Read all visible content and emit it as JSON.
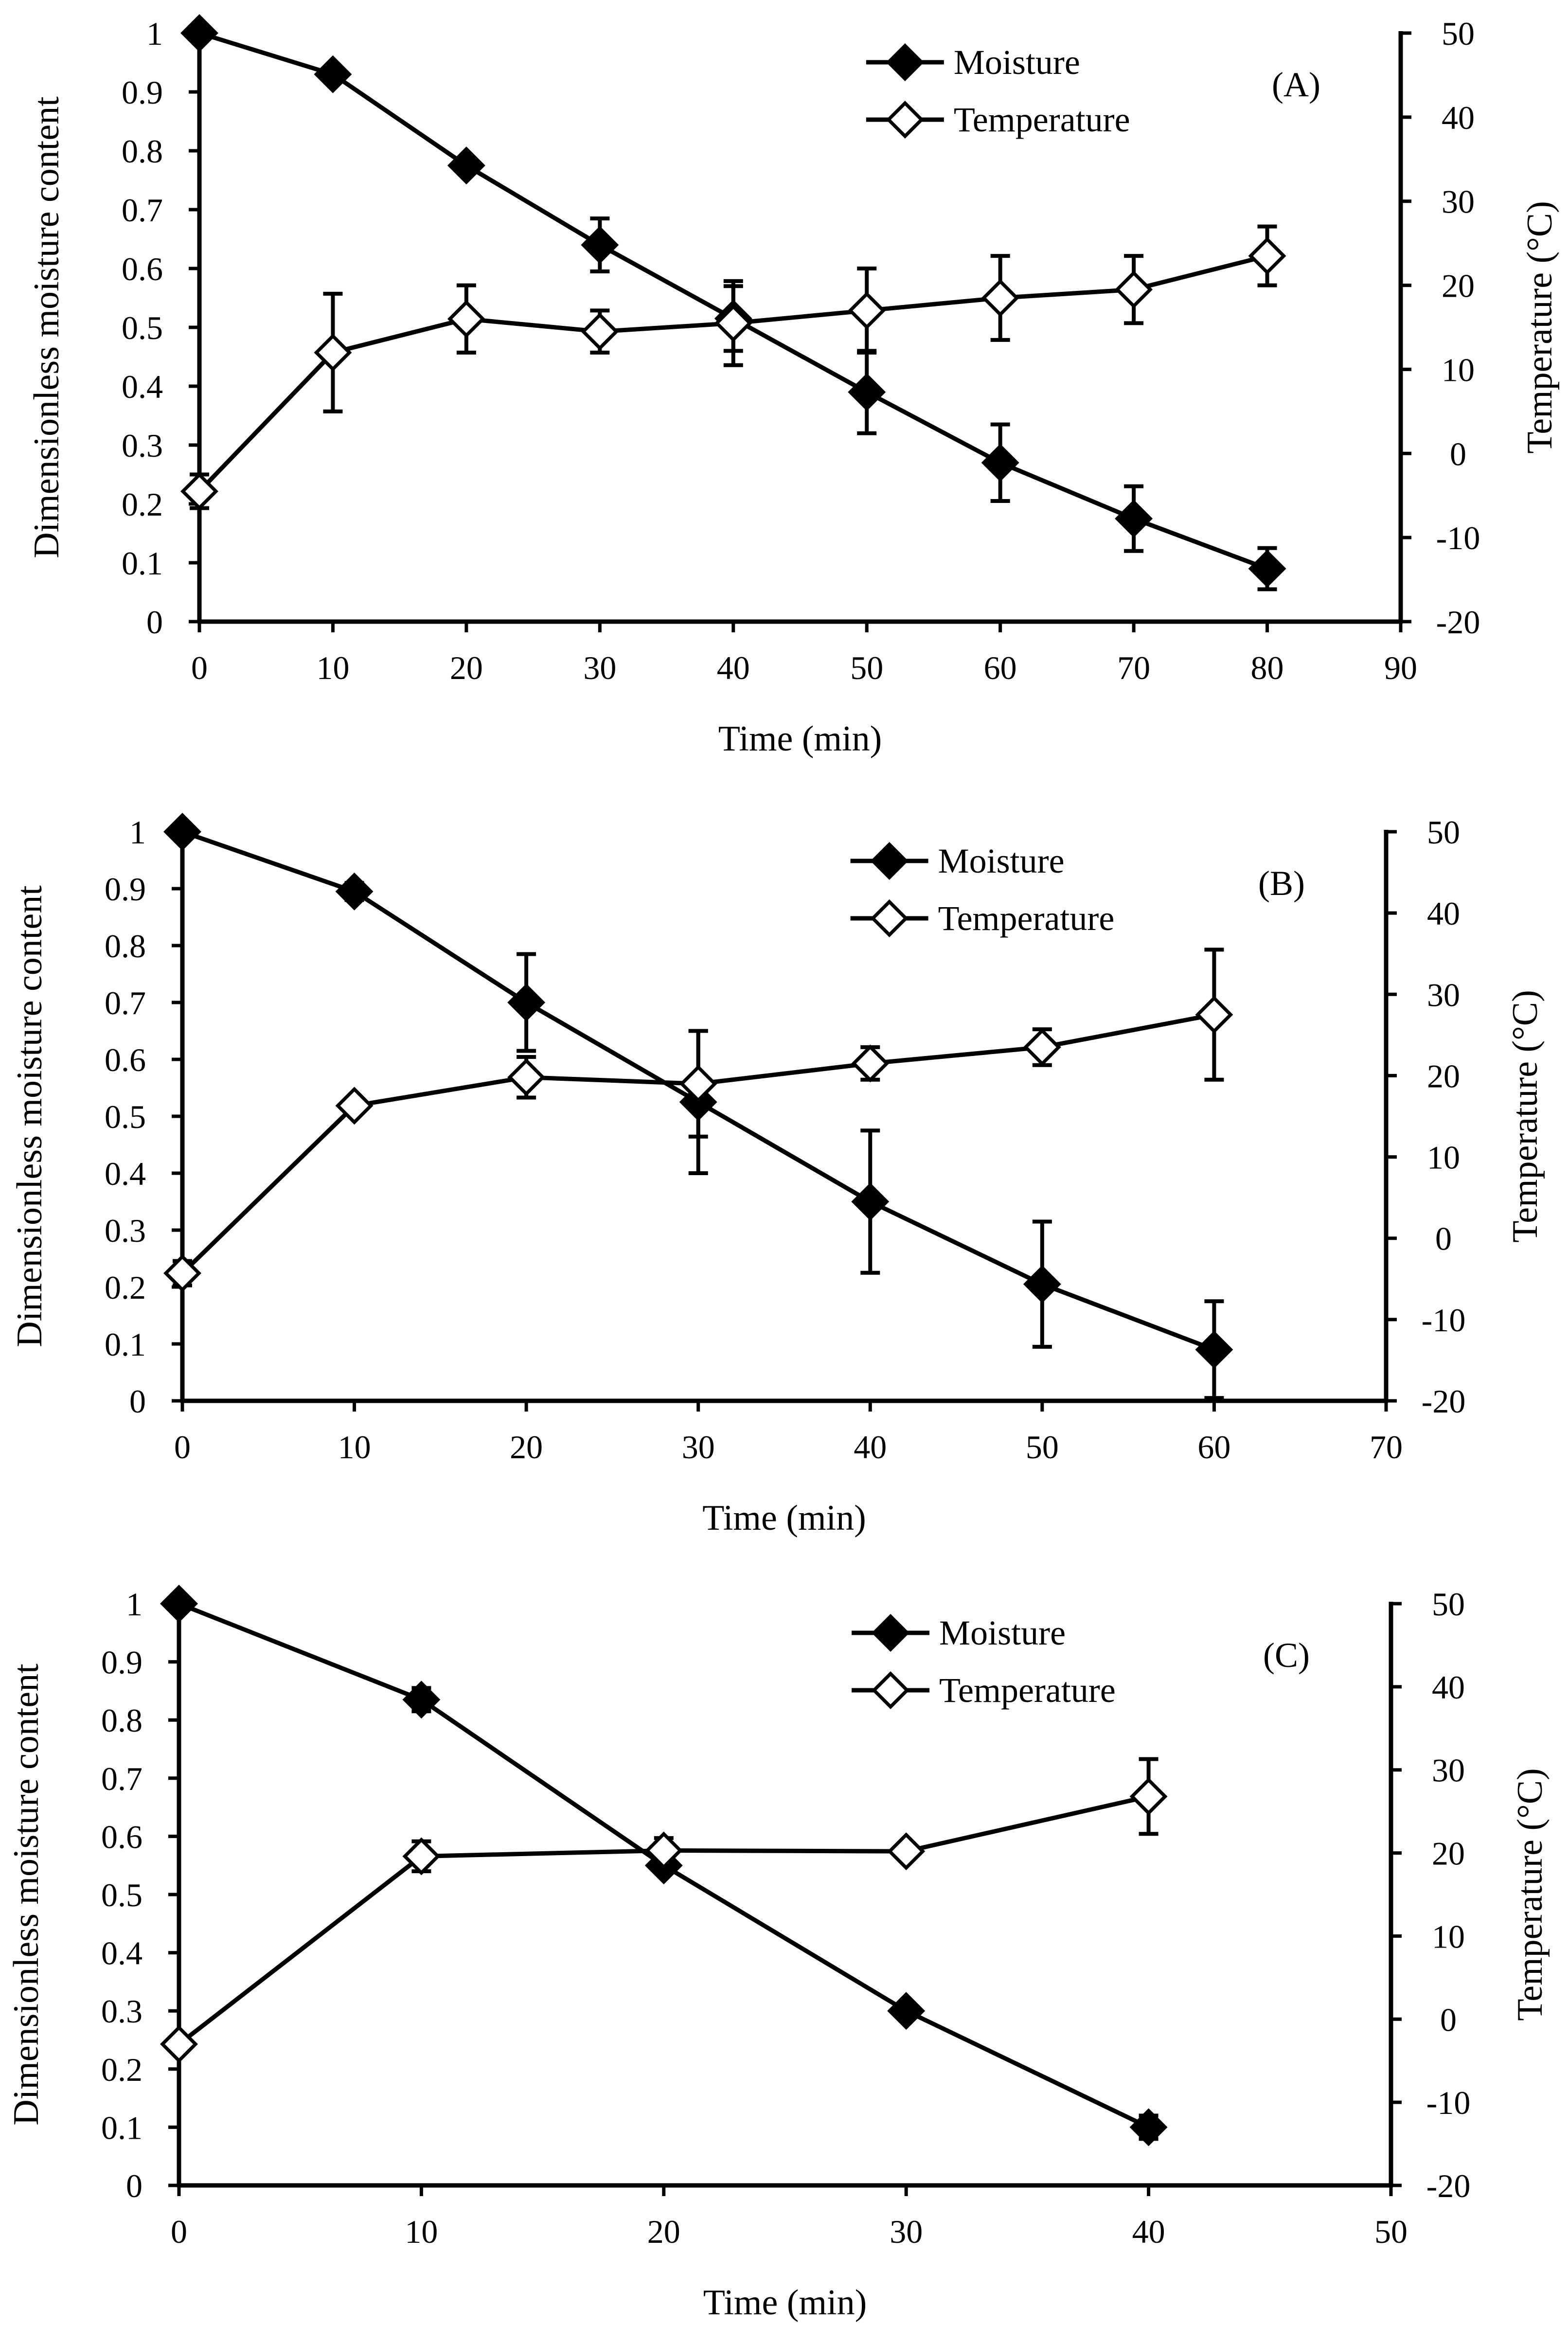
{
  "chart_data": [
    {
      "type": "line",
      "panel_label": "(A)",
      "xlabel": "Time (min)",
      "ylabel": "Dimensionless moisture content",
      "y2label": "Temperature (°C)",
      "xlim": [
        0,
        90
      ],
      "ylim": [
        0,
        1
      ],
      "y2lim": [
        -20,
        50
      ],
      "xticks": [
        0,
        10,
        20,
        30,
        40,
        50,
        60,
        70,
        80,
        90
      ],
      "yticks": [
        0,
        0.1,
        0.2,
        0.3,
        0.4,
        0.5,
        0.6,
        0.7,
        0.8,
        0.9,
        1
      ],
      "y2ticks": [
        -20,
        -10,
        0,
        10,
        20,
        30,
        40,
        50
      ],
      "legend_position": "top-center",
      "series": [
        {
          "name": "Moisture",
          "axis": "left",
          "marker": "filled-diamond",
          "x": [
            0,
            10,
            20,
            30,
            40,
            50,
            60,
            70,
            80
          ],
          "values": [
            1.0,
            0.93,
            0.775,
            0.64,
            0.515,
            0.39,
            0.27,
            0.175,
            0.09
          ],
          "errors": [
            0.0,
            0.0,
            0.0,
            0.045,
            0.055,
            0.07,
            0.065,
            0.055,
            0.035
          ]
        },
        {
          "name": "Temperature",
          "axis": "right",
          "marker": "open-diamond",
          "x": [
            0,
            10,
            20,
            30,
            40,
            50,
            60,
            70,
            80
          ],
          "values": [
            -4.5,
            12.0,
            16.0,
            14.5,
            15.5,
            17.0,
            18.5,
            19.5,
            23.5
          ],
          "errors": [
            2.0,
            7.0,
            4.0,
            2.5,
            5.0,
            5.0,
            5.0,
            4.0,
            3.5
          ]
        }
      ]
    },
    {
      "type": "line",
      "panel_label": "(B)",
      "xlabel": "Time (min)",
      "ylabel": "Dimensionless moisture content",
      "y2label": "Temperature (°C)",
      "xlim": [
        0,
        70
      ],
      "ylim": [
        0,
        1
      ],
      "y2lim": [
        -20,
        50
      ],
      "xticks": [
        0,
        10,
        20,
        30,
        40,
        50,
        60,
        70
      ],
      "yticks": [
        0,
        0.1,
        0.2,
        0.3,
        0.4,
        0.5,
        0.6,
        0.7,
        0.8,
        0.9,
        1
      ],
      "y2ticks": [
        -20,
        -10,
        0,
        10,
        20,
        30,
        40,
        50
      ],
      "legend_position": "top-center",
      "series": [
        {
          "name": "Moisture",
          "axis": "left",
          "marker": "filled-diamond",
          "x": [
            0,
            10,
            20,
            30,
            40,
            50,
            60
          ],
          "values": [
            1.0,
            0.895,
            0.7,
            0.525,
            0.35,
            0.205,
            0.09
          ],
          "errors": [
            0.0,
            0.015,
            0.085,
            0.125,
            0.125,
            0.11,
            0.085
          ]
        },
        {
          "name": "Temperature",
          "axis": "right",
          "marker": "open-diamond",
          "x": [
            0,
            10,
            20,
            30,
            40,
            50,
            60
          ],
          "values": [
            -4.3,
            16.3,
            19.8,
            19.0,
            21.5,
            23.5,
            27.5
          ],
          "errors": [
            1.5,
            0.8,
            2.5,
            6.5,
            2.0,
            2.2,
            8.0
          ]
        }
      ]
    },
    {
      "type": "line",
      "panel_label": "(C)",
      "xlabel": "Time (min)",
      "ylabel": "Dimensionless moisture content",
      "y2label": "Temperature (°C)",
      "xlim": [
        0,
        50
      ],
      "ylim": [
        0,
        1
      ],
      "y2lim": [
        -20,
        50
      ],
      "xticks": [
        0,
        10,
        20,
        30,
        40,
        50
      ],
      "yticks": [
        0,
        0.1,
        0.2,
        0.3,
        0.4,
        0.5,
        0.6,
        0.7,
        0.8,
        0.9,
        1
      ],
      "y2ticks": [
        -20,
        -10,
        0,
        10,
        20,
        30,
        40,
        50
      ],
      "legend_position": "top-center",
      "series": [
        {
          "name": "Moisture",
          "axis": "left",
          "marker": "filled-diamond",
          "x": [
            0,
            10,
            20,
            30,
            40
          ],
          "values": [
            1.0,
            0.835,
            0.55,
            0.3,
            0.1
          ],
          "errors": [
            0.0,
            0.02,
            0.0,
            0.0,
            0.02
          ]
        },
        {
          "name": "Temperature",
          "axis": "right",
          "marker": "open-diamond",
          "x": [
            0,
            10,
            20,
            30,
            40
          ],
          "values": [
            -3.0,
            19.6,
            20.3,
            20.2,
            26.8
          ],
          "errors": [
            0.0,
            1.8,
            1.5,
            0.0,
            4.5
          ]
        }
      ]
    }
  ]
}
